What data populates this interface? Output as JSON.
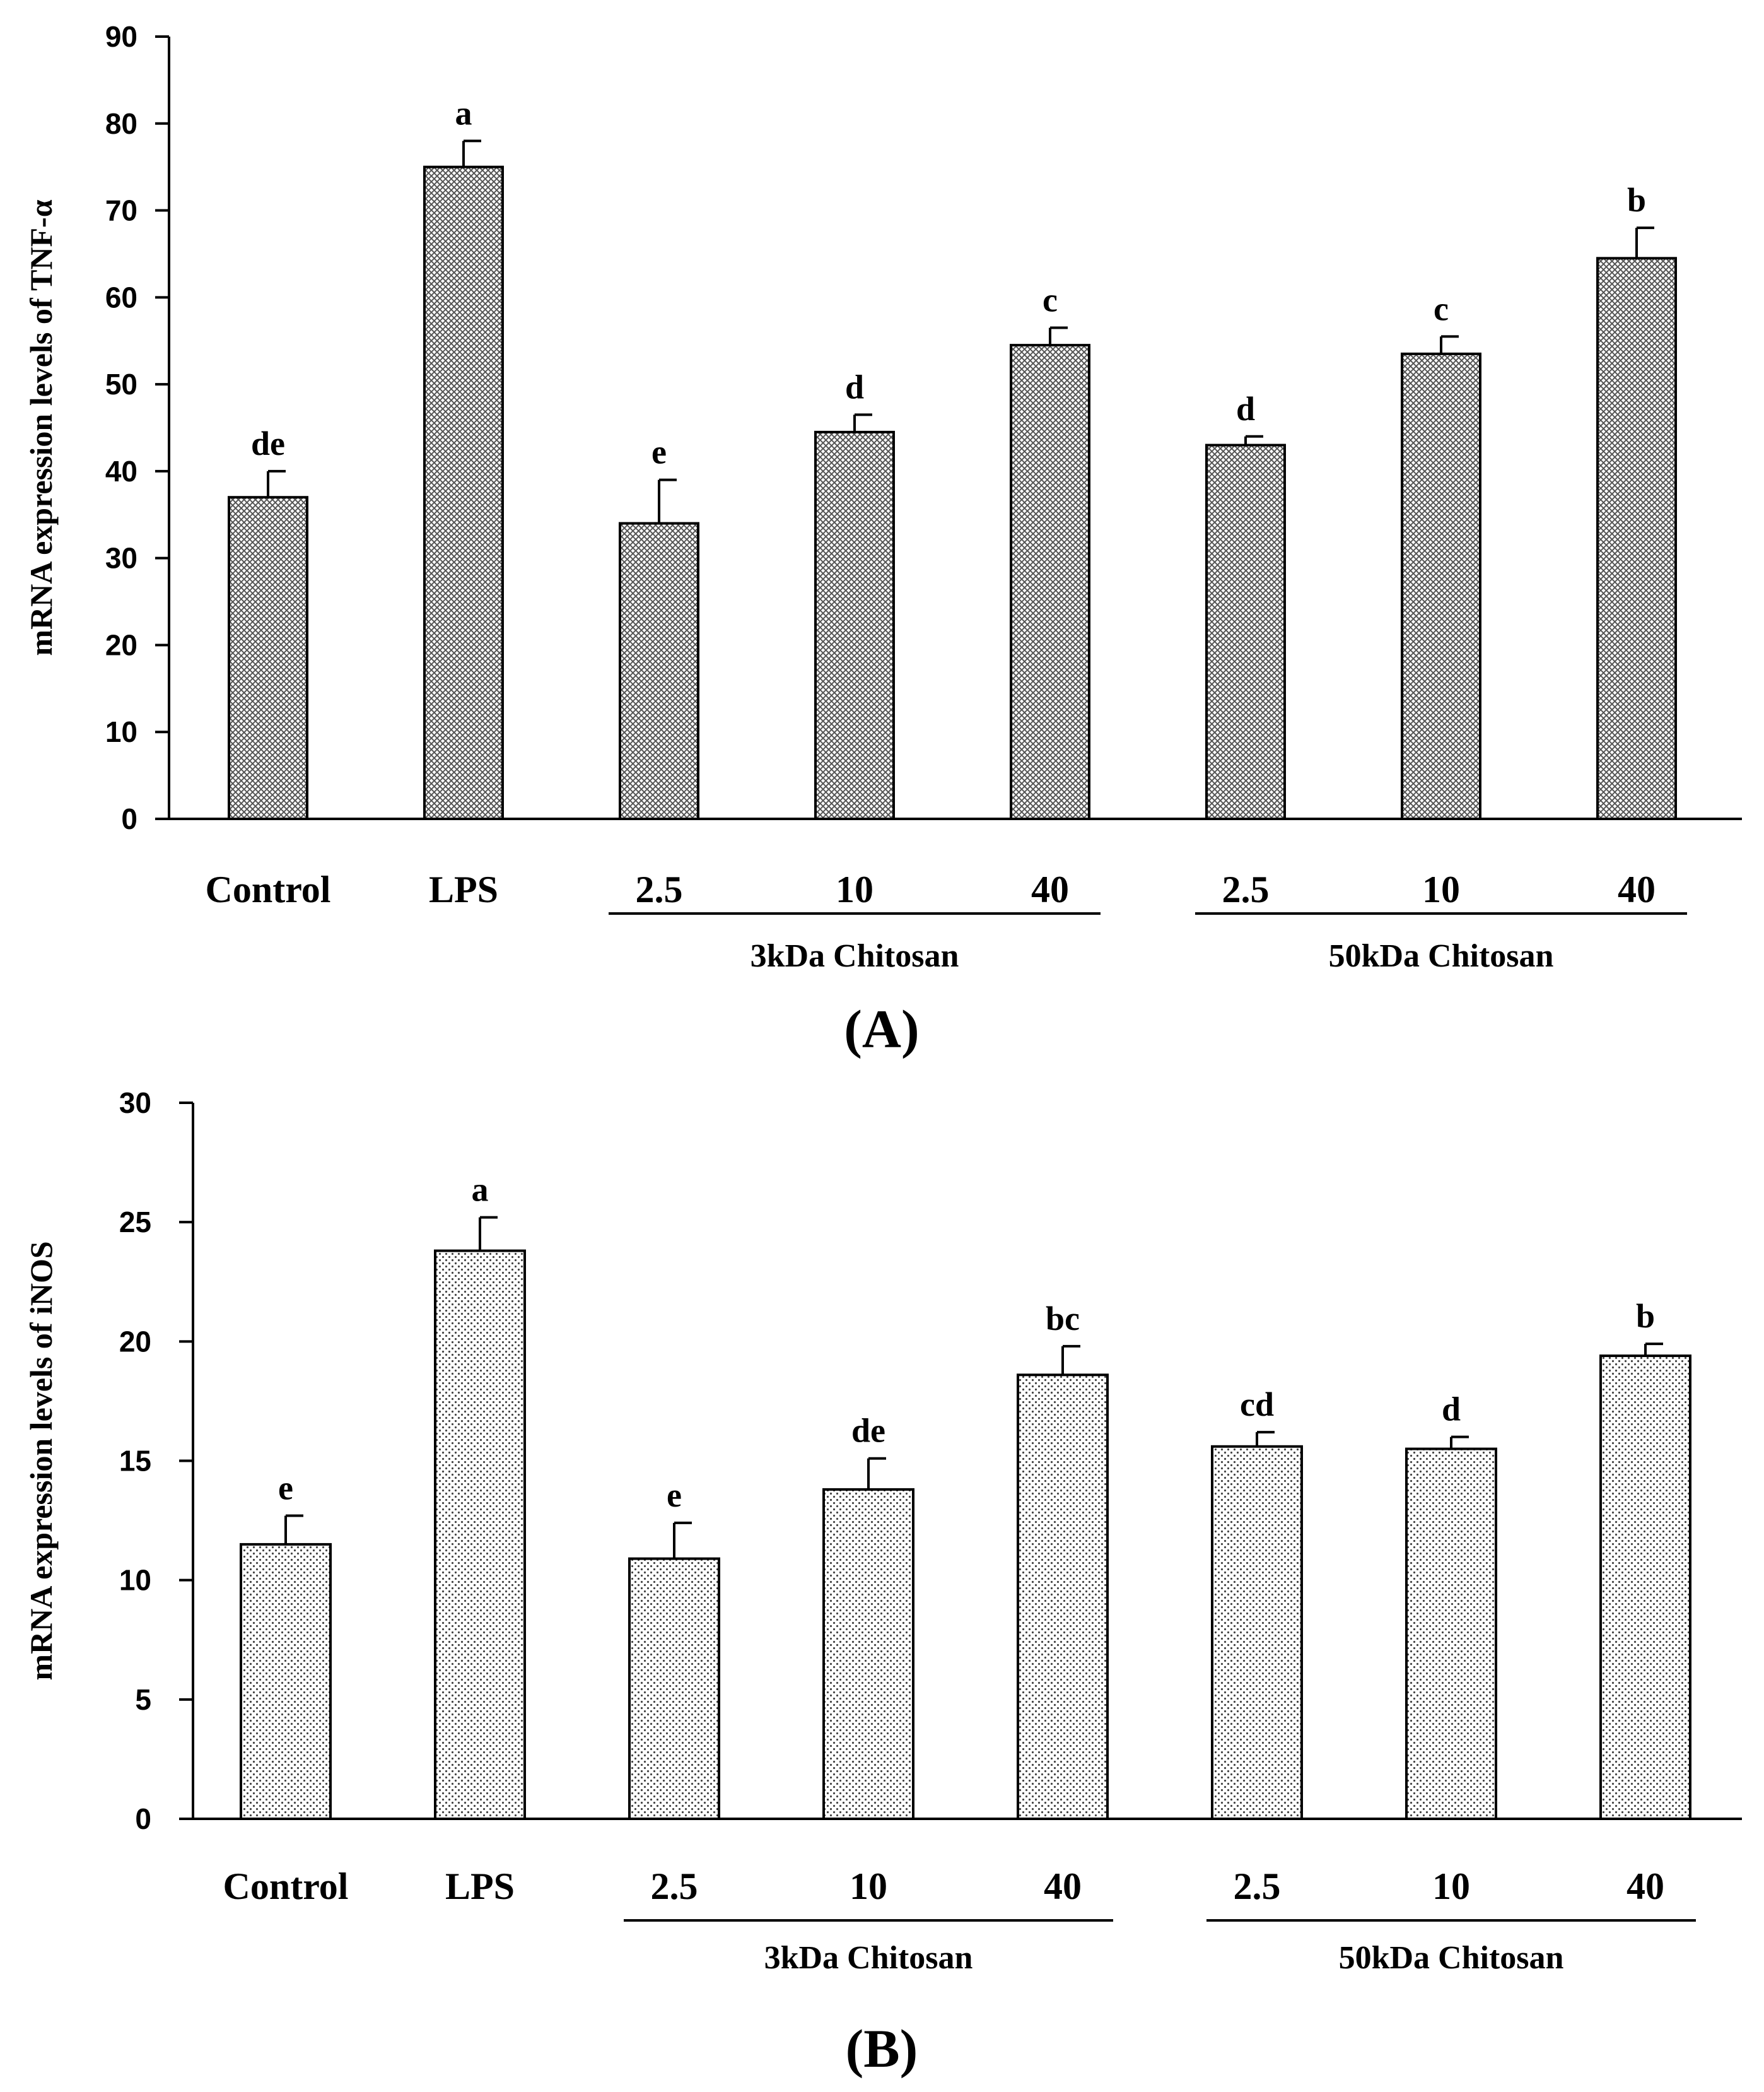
{
  "chart_data": [
    {
      "type": "bar",
      "panel_label": "A",
      "ylabel": "mRNA expression levels of TNF-α",
      "ylim": [
        0,
        90
      ],
      "yticks": [
        "0",
        "10",
        "20",
        "30",
        "40",
        "50",
        "60",
        "70",
        "80",
        "90"
      ],
      "categories": [
        "Control",
        "LPS",
        "2.5",
        "10",
        "40",
        "2.5",
        "10",
        "40"
      ],
      "values": [
        37,
        75,
        34,
        44.5,
        54.5,
        43,
        53.5,
        64.5
      ],
      "errors": [
        3,
        3,
        5,
        2,
        2,
        1,
        2,
        3.5
      ],
      "significance": [
        "de",
        "a",
        "e",
        "d",
        "c",
        "d",
        "c",
        "b"
      ],
      "groups": [
        {
          "label": "3kDa Chitosan",
          "from": 2,
          "to": 4
        },
        {
          "label": "50kDa Chitosan",
          "from": 5,
          "to": 7
        }
      ],
      "pattern": "crosshatch"
    },
    {
      "type": "bar",
      "panel_label": "B",
      "ylabel": "mRNA expression levels of iNOS",
      "ylim": [
        0,
        30
      ],
      "yticks": [
        "0",
        "5",
        "10",
        "15",
        "20",
        "25",
        "30"
      ],
      "categories": [
        "Control",
        "LPS",
        "2.5",
        "10",
        "40",
        "2.5",
        "10",
        "40"
      ],
      "values": [
        11.5,
        23.8,
        10.9,
        13.8,
        18.6,
        15.6,
        15.5,
        19.4
      ],
      "errors": [
        1.2,
        1.4,
        1.5,
        1.3,
        1.2,
        0.6,
        0.5,
        0.5
      ],
      "significance": [
        "e",
        "a",
        "e",
        "de",
        "bc",
        "cd",
        "d",
        "b"
      ],
      "groups": [
        {
          "label": "3kDa Chitosan",
          "from": 2,
          "to": 4
        },
        {
          "label": "50kDa Chitosan",
          "from": 5,
          "to": 7
        }
      ],
      "pattern": "dots"
    }
  ]
}
